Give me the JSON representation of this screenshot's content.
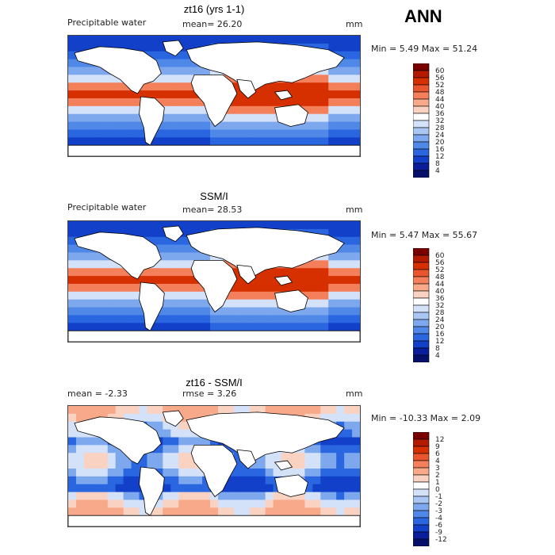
{
  "season_label": "ANN",
  "panels": [
    {
      "title": "zt16 (yrs 1-1)",
      "left_label": "Precipitable water",
      "center_label": "mean=  26.20",
      "right_label": "mm",
      "minmax_label": "Min =   5.49 Max =  51.24",
      "colorbar_ticks": [
        "60",
        "56",
        "52",
        "48",
        "44",
        "40",
        "36",
        "32",
        "28",
        "24",
        "20",
        "16",
        "12",
        "8",
        "4"
      ],
      "colorbar_colors": [
        "#7a0000",
        "#b31a00",
        "#d73000",
        "#e9552e",
        "#f4805b",
        "#f7a98a",
        "#fad2c1",
        "#ffffff",
        "#d4e2f9",
        "#a9c6f4",
        "#7ea8ee",
        "#5088e8",
        "#2a66e0",
        "#1240c8",
        "#0a1e9c",
        "#05106a"
      ]
    },
    {
      "title": "SSM/I",
      "left_label": "Precipitable water",
      "center_label": "mean=  28.53",
      "right_label": "mm",
      "minmax_label": "Min =   5.47 Max =  55.67",
      "colorbar_ticks": [
        "60",
        "56",
        "52",
        "48",
        "44",
        "40",
        "36",
        "32",
        "28",
        "24",
        "20",
        "16",
        "12",
        "8",
        "4"
      ],
      "colorbar_colors": [
        "#7a0000",
        "#b31a00",
        "#d73000",
        "#e9552e",
        "#f4805b",
        "#f7a98a",
        "#fad2c1",
        "#ffffff",
        "#d4e2f9",
        "#a9c6f4",
        "#7ea8ee",
        "#5088e8",
        "#2a66e0",
        "#1240c8",
        "#0a1e9c",
        "#05106a"
      ]
    },
    {
      "title": "zt16 - SSM/I",
      "left_label": "mean =   -2.33",
      "center_label": "rmse =    3.26",
      "right_label": "mm",
      "minmax_label": "Min = -10.33 Max =   2.09",
      "colorbar_ticks": [
        "12",
        "9",
        "6",
        "4",
        "3",
        "2",
        "1",
        "0",
        "-1",
        "-2",
        "-3",
        "-4",
        "-6",
        "-9",
        "-12"
      ],
      "colorbar_colors": [
        "#7a0000",
        "#b31a00",
        "#d73000",
        "#e9552e",
        "#f4805b",
        "#f7a98a",
        "#fad2c1",
        "#ffffff",
        "#d4e2f9",
        "#a9c6f4",
        "#7ea8ee",
        "#5088e8",
        "#2a66e0",
        "#1240c8",
        "#0a1e9c",
        "#05106a"
      ]
    }
  ]
}
